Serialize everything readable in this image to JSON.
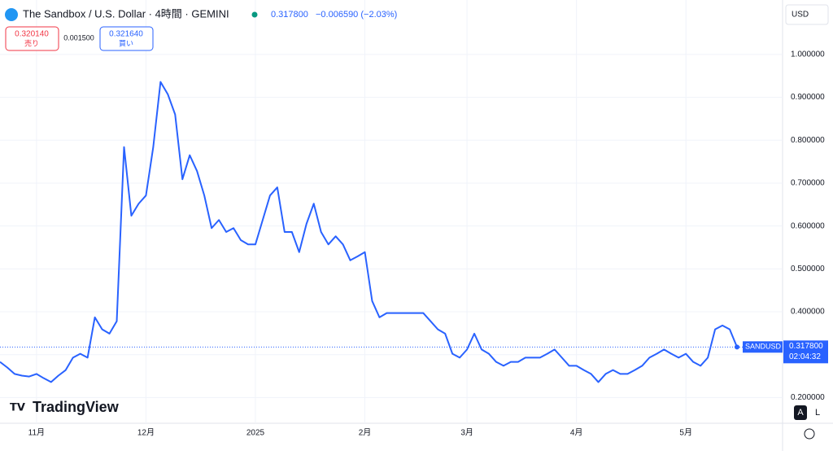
{
  "header": {
    "symbol": "The Sandbox / U.S. Dollar · 4時間 · GEMINI",
    "last": "0.317800",
    "change": "−0.006590 (−2.03%)",
    "currency": "USD",
    "sell_price": "0.320140",
    "sell_label": "売り",
    "spread": "0.001500",
    "buy_price": "0.321640",
    "buy_label": "買い",
    "brand": "TradingView",
    "price_tag": "SANDUSD",
    "price_tag_value": "0.317800",
    "countdown": "02:04:32",
    "auto": "A",
    "log": "L"
  },
  "chart_data": {
    "type": "line",
    "ylim": [
      0.14,
      1.07
    ],
    "yticks": [
      {
        "value": 0.2,
        "label": "0.200000"
      },
      {
        "value": 0.3,
        "label": "0.300000"
      },
      {
        "value": 0.4,
        "label": "0.400000"
      },
      {
        "value": 0.5,
        "label": "0.500000"
      },
      {
        "value": 0.6,
        "label": "0.600000"
      },
      {
        "value": 0.7,
        "label": "0.700000"
      },
      {
        "value": 0.8,
        "label": "0.800000"
      },
      {
        "value": 0.9,
        "label": "0.900000"
      },
      {
        "value": 1,
        "label": "1.000000"
      }
    ],
    "grid": true,
    "last_value": 0.3178,
    "categories": [
      null,
      null,
      null,
      null,
      null,
      "11月",
      null,
      null,
      null,
      null,
      null,
      null,
      null,
      null,
      null,
      null,
      null,
      null,
      null,
      null,
      "12月",
      null,
      null,
      null,
      null,
      null,
      null,
      null,
      null,
      null,
      null,
      null,
      null,
      null,
      null,
      "2025",
      null,
      null,
      null,
      null,
      null,
      null,
      null,
      null,
      null,
      null,
      null,
      null,
      null,
      null,
      "2月",
      null,
      null,
      null,
      null,
      null,
      null,
      null,
      null,
      null,
      null,
      null,
      null,
      null,
      "3月",
      null,
      null,
      null,
      null,
      null,
      null,
      null,
      null,
      null,
      null,
      null,
      null,
      null,
      null,
      "4月",
      null,
      null,
      null,
      null,
      null,
      null,
      null,
      null,
      null,
      null,
      null,
      null,
      null,
      null,
      "5月",
      null,
      null,
      null,
      null,
      null,
      null,
      null
    ],
    "series": [
      {
        "name": "SANDUSD",
        "color": "#2962ff",
        "values": [
          0.283,
          0.27,
          0.255,
          0.251,
          0.249,
          0.255,
          0.245,
          0.236,
          0.251,
          0.264,
          0.293,
          0.302,
          0.293,
          0.387,
          0.359,
          0.349,
          0.378,
          0.784,
          0.624,
          0.652,
          0.671,
          0.784,
          0.936,
          0.907,
          0.86,
          0.709,
          0.765,
          0.728,
          0.671,
          0.595,
          0.614,
          0.586,
          0.595,
          0.567,
          0.557,
          0.557,
          0.614,
          0.671,
          0.69,
          0.586,
          0.586,
          0.539,
          0.605,
          0.652,
          0.586,
          0.557,
          0.576,
          0.557,
          0.52,
          0.529,
          0.539,
          0.425,
          0.387,
          0.397,
          0.397,
          0.397,
          0.397,
          0.397,
          0.397,
          0.378,
          0.359,
          0.349,
          0.302,
          0.293,
          0.312,
          0.349,
          0.312,
          0.302,
          0.283,
          0.274,
          0.283,
          0.283,
          0.293,
          0.293,
          0.293,
          0.302,
          0.312,
          0.293,
          0.274,
          0.274,
          0.264,
          0.255,
          0.236,
          0.255,
          0.264,
          0.255,
          0.255,
          0.264,
          0.274,
          0.293,
          0.302,
          0.312,
          0.302,
          0.293,
          0.302,
          0.283,
          0.274,
          0.293,
          0.359,
          0.368,
          0.359,
          0.3178
        ]
      }
    ]
  }
}
